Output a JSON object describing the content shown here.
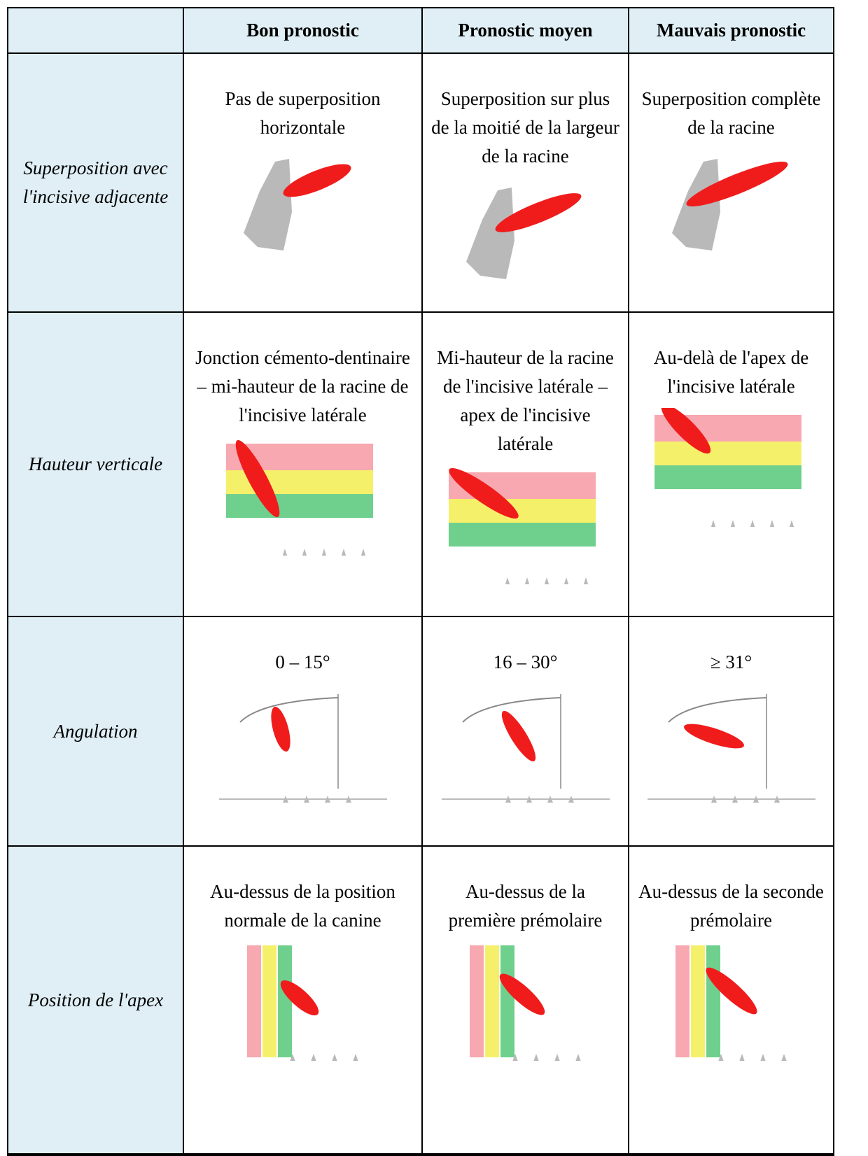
{
  "header": {
    "columns": [
      "Bon pronostic",
      "Pronostic moyen",
      "Mauvais pronostic"
    ]
  },
  "rows": [
    {
      "label": "Superposition avec l'incisive adjacente",
      "cells": [
        "Pas de superposition horizontale",
        "Superposition sur plus de la moitié de la largeur de la racine",
        "Superposition complète de la racine"
      ]
    },
    {
      "label": "Hauteur verticale",
      "cells": [
        "Jonction cémento-dentinaire – mi-hauteur de la racine de l'incisive latérale",
        "Mi-hauteur de la racine de l'incisive latérale – apex de l'incisive latérale",
        "Au-delà de l'apex de l'incisive latérale"
      ]
    },
    {
      "label": "Angulation",
      "cells": [
        "0 – 15°",
        "16 – 30°",
        "≥ 31°"
      ]
    },
    {
      "label": "Position de l'apex",
      "cells": [
        "Au-dessus de la position normale de la canine",
        "Au-dessus de la première prémolaire",
        "Au-dessus de la seconde prémolaire"
      ]
    }
  ]
}
